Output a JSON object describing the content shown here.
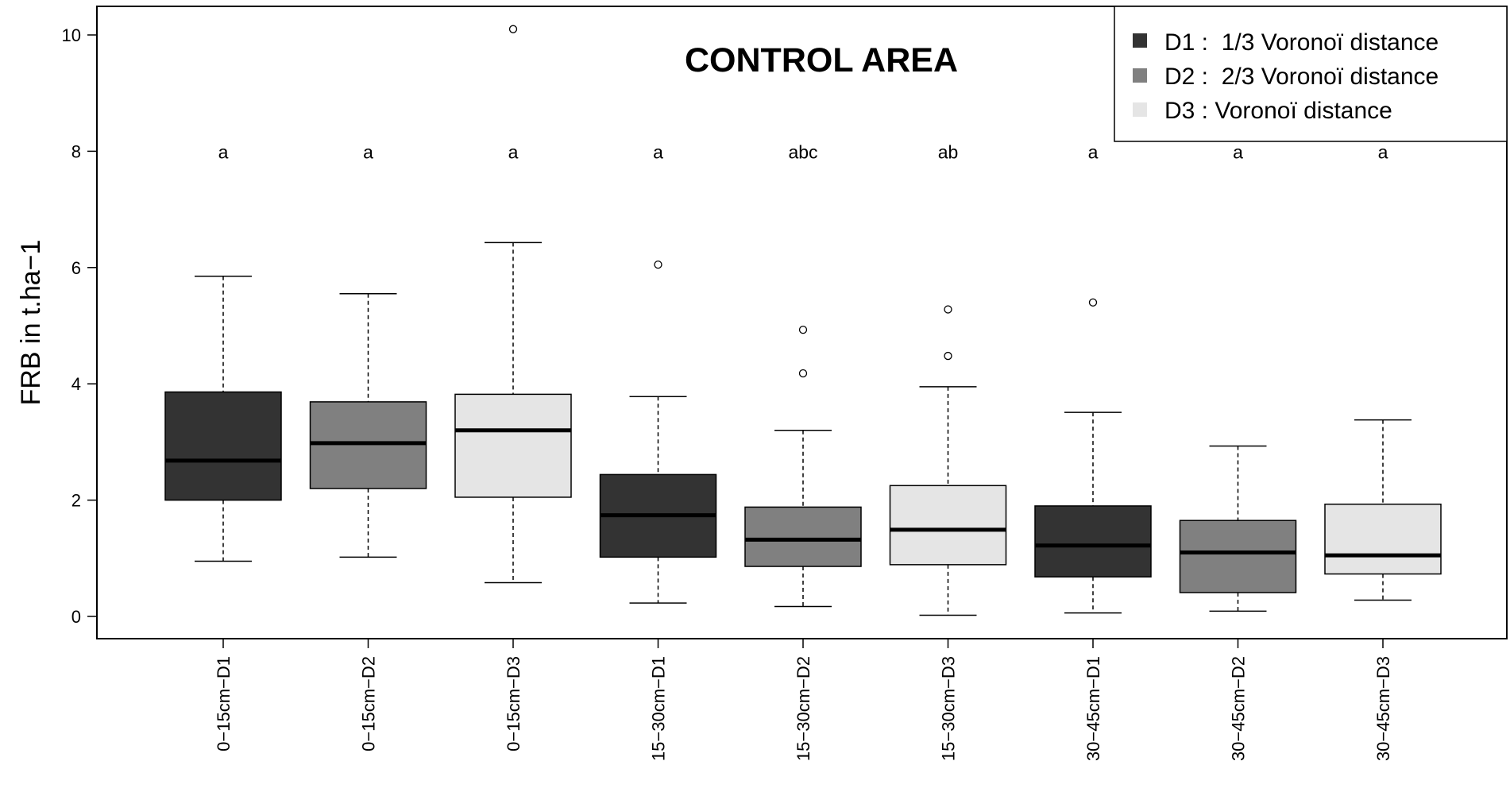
{
  "chart_data": {
    "type": "box",
    "title": "CONTROL AREA",
    "ylabel": "FRB in t.ha−1",
    "xlabel": "",
    "ylim": [
      -0.35,
      10.5
    ],
    "yticks": [
      0,
      2,
      4,
      6,
      8,
      10
    ],
    "grid": false,
    "legend_position": "top-right",
    "legend": [
      {
        "key": "D1",
        "label": "D1 :  1/3 Voronoï distance",
        "color": "#333333"
      },
      {
        "key": "D2",
        "label": "D2 :  2/3 Voronoï distance",
        "color": "#808080"
      },
      {
        "key": "D3",
        "label": "D3 : Voronoï distance",
        "color": "#e5e5e5"
      }
    ],
    "boxes": [
      {
        "category": "0−15cm−D1",
        "group": "D1",
        "whisker_low": 0.95,
        "q1": 2.0,
        "median": 2.68,
        "q3": 3.86,
        "whisker_high": 5.85,
        "outliers": [],
        "letter": "a"
      },
      {
        "category": "0−15cm−D2",
        "group": "D2",
        "whisker_low": 1.02,
        "q1": 2.2,
        "median": 2.98,
        "q3": 3.69,
        "whisker_high": 5.55,
        "outliers": [],
        "letter": "a"
      },
      {
        "category": "0−15cm−D3",
        "group": "D3",
        "whisker_low": 0.58,
        "q1": 2.05,
        "median": 3.2,
        "q3": 3.82,
        "whisker_high": 6.43,
        "outliers": [
          10.1
        ],
        "letter": "a"
      },
      {
        "category": "15−30cm−D1",
        "group": "D1",
        "whisker_low": 0.23,
        "q1": 1.02,
        "median": 1.74,
        "q3": 2.44,
        "whisker_high": 3.78,
        "outliers": [
          6.05
        ],
        "letter": "a"
      },
      {
        "category": "15−30cm−D2",
        "group": "D2",
        "whisker_low": 0.17,
        "q1": 0.86,
        "median": 1.32,
        "q3": 1.88,
        "whisker_high": 3.2,
        "outliers": [
          4.93,
          4.18
        ],
        "letter": "abc"
      },
      {
        "category": "15−30cm−D3",
        "group": "D3",
        "whisker_low": 0.02,
        "q1": 0.89,
        "median": 1.49,
        "q3": 2.25,
        "whisker_high": 3.95,
        "outliers": [
          5.28,
          4.48
        ],
        "letter": "ab"
      },
      {
        "category": "30−45cm−D1",
        "group": "D1",
        "whisker_low": 0.06,
        "q1": 0.68,
        "median": 1.22,
        "q3": 1.9,
        "whisker_high": 3.51,
        "outliers": [
          5.4
        ],
        "letter": "a"
      },
      {
        "category": "30−45cm−D2",
        "group": "D2",
        "whisker_low": 0.09,
        "q1": 0.41,
        "median": 1.1,
        "q3": 1.65,
        "whisker_high": 2.93,
        "outliers": [],
        "letter": "a"
      },
      {
        "category": "30−45cm−D3",
        "group": "D3",
        "whisker_low": 0.28,
        "q1": 0.73,
        "median": 1.05,
        "q3": 1.93,
        "whisker_high": 3.38,
        "outliers": [],
        "letter": "a"
      }
    ],
    "letter_y": 8
  }
}
